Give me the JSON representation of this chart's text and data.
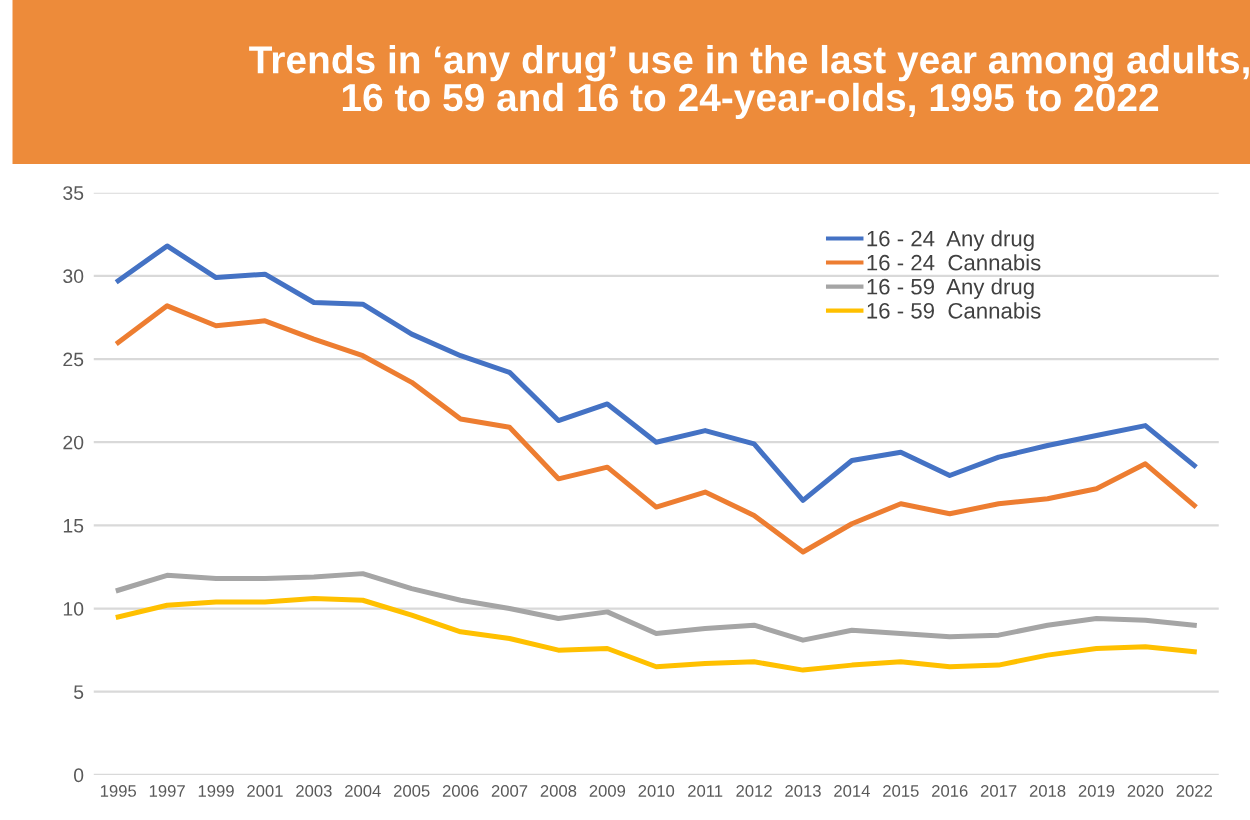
{
  "chart_data": {
    "type": "line",
    "title": "Trends in ‘any drug’ use in the last year among adults,\n16 to 59 and 16 to 24-year-olds, 1995 to 2022",
    "categories": [
      "1995",
      "1997",
      "1999",
      "2001",
      "2003",
      "2004",
      "2005",
      "2006",
      "2007",
      "2008",
      "2009",
      "2010",
      "2011",
      "2012",
      "2013",
      "2014",
      "2015",
      "2016",
      "2017",
      "2018",
      "2019",
      "2020",
      "2022"
    ],
    "series": [
      {
        "name": "16 - 24  Any drug",
        "color": "#4472c4",
        "values": [
          29.7,
          31.8,
          29.9,
          30.1,
          28.4,
          28.3,
          26.5,
          25.2,
          24.2,
          21.3,
          22.3,
          20.0,
          20.7,
          19.9,
          16.5,
          18.9,
          19.4,
          18.0,
          19.1,
          19.8,
          20.4,
          21.0,
          18.6
        ]
      },
      {
        "name": "16 - 24  Cannabis",
        "color": "#ed7d31",
        "values": [
          26.0,
          28.2,
          27.0,
          27.3,
          26.2,
          25.2,
          23.6,
          21.4,
          20.9,
          17.8,
          18.5,
          16.1,
          17.0,
          15.6,
          13.4,
          15.1,
          16.3,
          15.7,
          16.3,
          16.6,
          17.2,
          18.7,
          16.2
        ]
      },
      {
        "name": "16 - 59  Any drug",
        "color": "#a5a5a5",
        "values": [
          11.1,
          12.0,
          11.8,
          11.8,
          11.9,
          12.1,
          11.2,
          10.5,
          10.0,
          9.4,
          9.8,
          8.5,
          8.8,
          9.0,
          8.1,
          8.7,
          8.5,
          8.3,
          8.4,
          9.0,
          9.4,
          9.3,
          9.0
        ]
      },
      {
        "name": "16 - 59  Cannabis",
        "color": "#ffc000",
        "values": [
          9.5,
          10.2,
          10.4,
          10.4,
          10.6,
          10.5,
          9.6,
          8.6,
          8.2,
          7.5,
          7.6,
          6.5,
          6.7,
          6.8,
          6.3,
          6.6,
          6.8,
          6.5,
          6.6,
          7.2,
          7.6,
          7.7,
          7.4
        ]
      }
    ],
    "ylim": [
      0,
      35
    ],
    "yticks": [
      0,
      5,
      10,
      15,
      20,
      25,
      30,
      35
    ],
    "grid": "y",
    "legend": "top right",
    "marker": "none",
    "line_style": "solid"
  }
}
